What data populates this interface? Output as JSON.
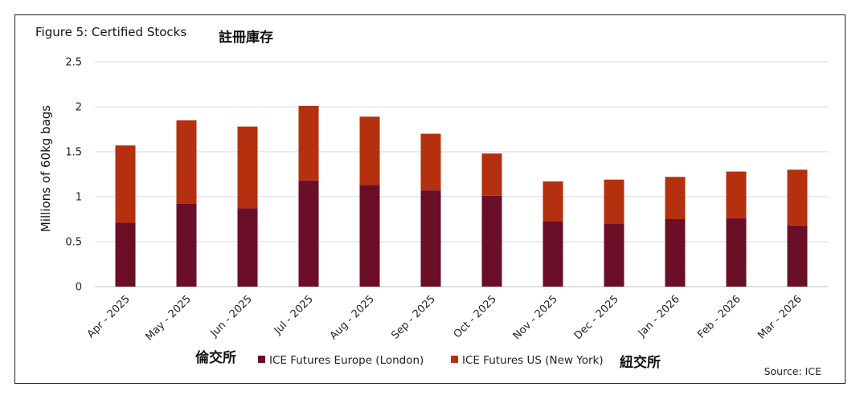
{
  "chart_data": {
    "type": "bar",
    "stacked": true,
    "title": "Figure 5: Certified Stocks",
    "title_annotation": "註冊庫存",
    "ylabel": "Millions of 60kg bags",
    "ylim": [
      0,
      2.5
    ],
    "yticks": [
      "0",
      "0.5",
      "1",
      "1.5",
      "2",
      "2.5"
    ],
    "grid": true,
    "categories": [
      "Apr - 2025",
      "May - 2025",
      "Jun - 2025",
      "Jul - 2025",
      "Aug - 2025",
      "Sep - 2025",
      "Oct - 2025",
      "Nov - 2025",
      "Dec - 2025",
      "Jan - 2026",
      "Feb - 2026",
      "Mar - 2026"
    ],
    "series": [
      {
        "name": "ICE Futures Europe (London)",
        "color": "#6b0e28",
        "values": [
          0.71,
          0.92,
          0.87,
          1.18,
          1.13,
          1.07,
          1.01,
          0.73,
          0.7,
          0.75,
          0.76,
          0.68
        ]
      },
      {
        "name": "ICE Futures US (New York)",
        "color": "#b5300e",
        "values": [
          0.86,
          0.93,
          0.91,
          0.83,
          0.76,
          0.63,
          0.47,
          0.44,
          0.49,
          0.47,
          0.52,
          0.62
        ]
      }
    ],
    "legend_position": "bottom",
    "legend_annotations": [
      "倫交所",
      "紐交所"
    ],
    "source": "Source: ICE"
  }
}
